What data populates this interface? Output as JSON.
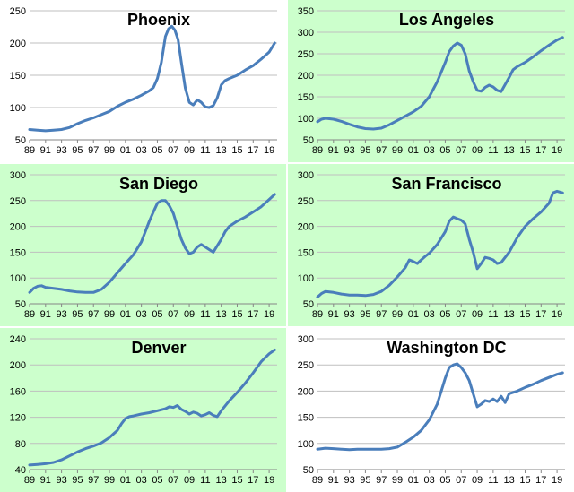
{
  "colors": {
    "line": "#4a7ebb",
    "grid": "#bfbfbf",
    "highlight_bg": "#ccffcc",
    "plain_bg": "#ffffff"
  },
  "chart_data": [
    {
      "type": "line",
      "title": "Phoenix",
      "background": "#ffffff",
      "xticks": [
        "89",
        "91",
        "93",
        "95",
        "97",
        "99",
        "01",
        "03",
        "05",
        "07",
        "09",
        "11",
        "13",
        "15",
        "17",
        "19"
      ],
      "ylim": [
        50,
        250
      ],
      "yticks": [
        "50",
        "100",
        "150",
        "200",
        "250"
      ],
      "grid": true,
      "series": [
        {
          "x": [
            1989,
            1990,
            1991,
            1992,
            1993,
            1994,
            1995,
            1996,
            1997,
            1998,
            1999,
            2000,
            2001,
            2002,
            2003,
            2004,
            2004.5,
            2005,
            2005.5,
            2006,
            2006.4,
            2006.8,
            2007.2,
            2007.6,
            2008,
            2008.5,
            2009,
            2009.5,
            2010,
            2010.5,
            2011,
            2011.5,
            2012,
            2012.5,
            2013,
            2013.5,
            2014,
            2015,
            2016,
            2017,
            2018,
            2019,
            2019.7
          ],
          "y": [
            66,
            65,
            64,
            65,
            66,
            69,
            75,
            80,
            84,
            89,
            94,
            102,
            108,
            113,
            119,
            126,
            131,
            145,
            170,
            210,
            222,
            226,
            220,
            205,
            170,
            130,
            108,
            104,
            112,
            108,
            101,
            100,
            103,
            115,
            135,
            142,
            145,
            150,
            158,
            165,
            175,
            186,
            200
          ]
        }
      ]
    },
    {
      "type": "line",
      "title": "Los Angeles",
      "background": "#ccffcc",
      "xticks": [
        "89",
        "91",
        "93",
        "95",
        "97",
        "99",
        "01",
        "03",
        "05",
        "07",
        "09",
        "11",
        "13",
        "15",
        "17",
        "19"
      ],
      "ylim": [
        50,
        350
      ],
      "yticks": [
        "50",
        "100",
        "150",
        "200",
        "250",
        "300",
        "350"
      ],
      "grid": true,
      "series": [
        {
          "x": [
            1989,
            1989.5,
            1990,
            1991,
            1992,
            1993,
            1994,
            1995,
            1996,
            1997,
            1998,
            1999,
            2000,
            2001,
            2002,
            2003,
            2004,
            2005,
            2005.5,
            2006,
            2006.5,
            2007,
            2007.5,
            2008,
            2008.5,
            2009,
            2009.5,
            2010,
            2010.5,
            2011,
            2011.5,
            2012,
            2013,
            2013.5,
            2014,
            2015,
            2016,
            2017,
            2018,
            2019,
            2019.7
          ],
          "y": [
            92,
            98,
            100,
            98,
            93,
            86,
            80,
            76,
            75,
            77,
            85,
            95,
            105,
            115,
            128,
            150,
            185,
            230,
            255,
            268,
            275,
            270,
            250,
            210,
            185,
            165,
            163,
            172,
            177,
            173,
            165,
            162,
            195,
            213,
            220,
            230,
            243,
            257,
            270,
            282,
            288
          ]
        }
      ]
    },
    {
      "type": "line",
      "title": "San Diego",
      "background": "#ccffcc",
      "xticks": [
        "89",
        "91",
        "93",
        "95",
        "97",
        "99",
        "01",
        "03",
        "05",
        "07",
        "09",
        "11",
        "13",
        "15",
        "17",
        "19"
      ],
      "ylim": [
        50,
        300
      ],
      "yticks": [
        "50",
        "100",
        "150",
        "200",
        "250",
        "300"
      ],
      "grid": true,
      "series": [
        {
          "x": [
            1989,
            1989.5,
            1990,
            1990.5,
            1991,
            1992,
            1993,
            1994,
            1995,
            1996,
            1997,
            1998,
            1999,
            2000,
            2001,
            2002,
            2003,
            2004,
            2004.5,
            2005,
            2005.5,
            2006,
            2006.5,
            2007,
            2007.5,
            2008,
            2008.5,
            2009,
            2009.5,
            2010,
            2010.5,
            2011,
            2011.5,
            2012,
            2013,
            2013.5,
            2014,
            2015,
            2016,
            2017,
            2018,
            2019,
            2019.7
          ],
          "y": [
            72,
            80,
            84,
            85,
            82,
            80,
            78,
            75,
            73,
            72,
            72,
            78,
            92,
            110,
            128,
            145,
            170,
            210,
            228,
            245,
            250,
            250,
            240,
            225,
            200,
            175,
            158,
            147,
            150,
            160,
            165,
            160,
            155,
            150,
            175,
            190,
            200,
            210,
            218,
            228,
            238,
            252,
            262
          ]
        }
      ]
    },
    {
      "type": "line",
      "title": "San Francisco",
      "background": "#ccffcc",
      "xticks": [
        "89",
        "91",
        "93",
        "95",
        "97",
        "99",
        "01",
        "03",
        "05",
        "07",
        "09",
        "11",
        "13",
        "15",
        "17",
        "19"
      ],
      "ylim": [
        50,
        300
      ],
      "yticks": [
        "50",
        "100",
        "150",
        "200",
        "250",
        "300"
      ],
      "grid": true,
      "series": [
        {
          "x": [
            1989,
            1989.5,
            1990,
            1991,
            1992,
            1993,
            1994,
            1995,
            1996,
            1997,
            1998,
            1999,
            2000,
            2000.5,
            2001,
            2001.5,
            2002,
            2002.5,
            2003,
            2004,
            2005,
            2005.5,
            2006,
            2006.5,
            2007,
            2007.5,
            2008,
            2008.5,
            2009,
            2009.5,
            2010,
            2010.5,
            2011,
            2011.5,
            2012,
            2013,
            2014,
            2015,
            2016,
            2017,
            2018,
            2018.5,
            2019,
            2019.7
          ],
          "y": [
            63,
            70,
            74,
            72,
            69,
            67,
            67,
            66,
            68,
            74,
            86,
            102,
            120,
            135,
            132,
            128,
            135,
            142,
            148,
            165,
            190,
            210,
            218,
            215,
            212,
            205,
            175,
            150,
            118,
            128,
            140,
            138,
            135,
            128,
            130,
            150,
            178,
            200,
            215,
            228,
            245,
            265,
            268,
            265
          ]
        }
      ]
    },
    {
      "type": "line",
      "title": "Denver",
      "background": "#ccffcc",
      "xticks": [
        "89",
        "91",
        "93",
        "95",
        "97",
        "99",
        "01",
        "03",
        "05",
        "07",
        "09",
        "11",
        "13",
        "15",
        "17",
        "19"
      ],
      "ylim": [
        40,
        240
      ],
      "yticks": [
        "40",
        "80",
        "120",
        "160",
        "200",
        "240"
      ],
      "grid": true,
      "series": [
        {
          "x": [
            1989,
            1990,
            1991,
            1992,
            1993,
            1994,
            1995,
            1996,
            1997,
            1998,
            1999,
            2000,
            2000.5,
            2001,
            2001.5,
            2002,
            2003,
            2004,
            2005,
            2006,
            2006.5,
            2007,
            2007.5,
            2008,
            2008.5,
            2009,
            2009.5,
            2010,
            2010.5,
            2011,
            2011.5,
            2012,
            2012.5,
            2013,
            2014,
            2015,
            2016,
            2017,
            2018,
            2019,
            2019.7
          ],
          "y": [
            47,
            48,
            49,
            51,
            55,
            61,
            67,
            72,
            76,
            81,
            89,
            100,
            110,
            118,
            121,
            122,
            125,
            127,
            130,
            133,
            136,
            135,
            138,
            132,
            129,
            125,
            128,
            126,
            122,
            124,
            127,
            123,
            121,
            130,
            145,
            158,
            172,
            188,
            205,
            217,
            223
          ]
        }
      ]
    },
    {
      "type": "line",
      "title": "Washington DC",
      "background": "#ffffff",
      "xticks": [
        "89",
        "91",
        "93",
        "95",
        "97",
        "99",
        "01",
        "03",
        "05",
        "07",
        "09",
        "11",
        "13",
        "15",
        "17",
        "19"
      ],
      "ylim": [
        50,
        300
      ],
      "yticks": [
        "50",
        "100",
        "150",
        "200",
        "250",
        "300"
      ],
      "grid": true,
      "series": [
        {
          "x": [
            1989,
            1990,
            1991,
            1992,
            1993,
            1994,
            1995,
            1996,
            1997,
            1998,
            1999,
            2000,
            2001,
            2002,
            2003,
            2004,
            2004.5,
            2005,
            2005.5,
            2006,
            2006.5,
            2007,
            2007.5,
            2008,
            2008.5,
            2009,
            2009.5,
            2010,
            2010.5,
            2011,
            2011.5,
            2012,
            2012.5,
            2013,
            2014,
            2015,
            2016,
            2017,
            2018,
            2019,
            2019.7
          ],
          "y": [
            89,
            91,
            90,
            89,
            88,
            89,
            89,
            89,
            89,
            90,
            93,
            102,
            112,
            125,
            145,
            175,
            200,
            225,
            245,
            250,
            252,
            245,
            235,
            220,
            195,
            170,
            175,
            182,
            180,
            185,
            180,
            190,
            178,
            195,
            200,
            207,
            213,
            220,
            226,
            232,
            235
          ]
        }
      ]
    }
  ]
}
